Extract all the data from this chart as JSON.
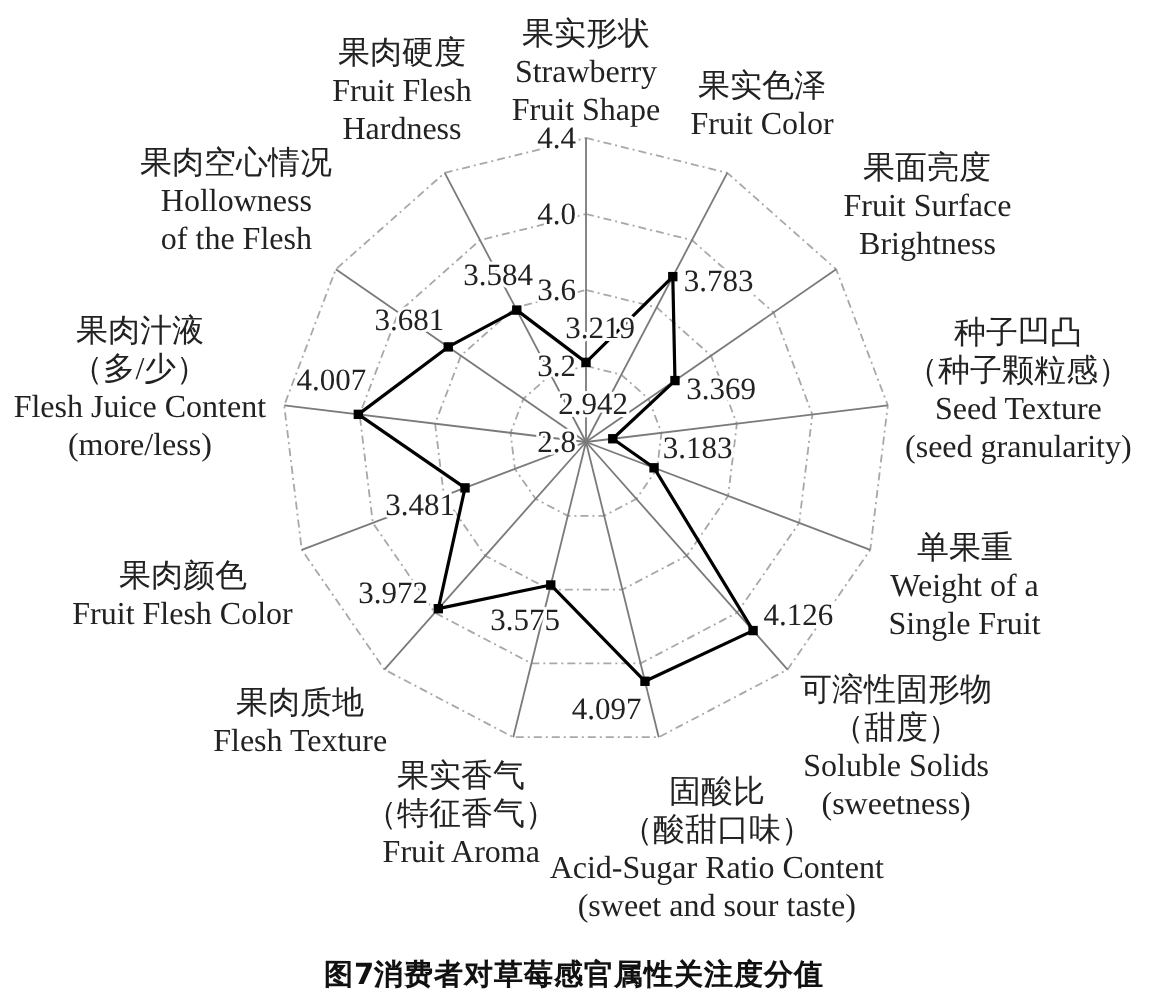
{
  "chart_data": {
    "type": "radar",
    "title": "图7消费者对草莓感官属性关注度分值",
    "categories": [
      "果实形状\nStrawberry\nFruit Shape",
      "果实色泽\nFruit Color",
      "果面亮度\nFruit Surface\nBrightness",
      "种子凹凸（种子颗粒感）\nSeed Texture\n(seed granularity)",
      "单果重\nWeight of a\nSingle Fruit",
      "可溶性固形物（甜度）\nSoluble Solids\n(sweetness)",
      "固酸比（酸甜口味）\nAcid-Sugar Ratio Content\n(sweet and sour taste)",
      "果实香气（特征香气）\nFruit Aroma",
      "果肉质地\nFlesh Texture",
      "果肉颜色\nFruit Flesh Color",
      "果肉汁液（多/少）\nFlesh Juice Content\n(more/less)",
      "果肉空心情况\nHollowness\nof the Flesh",
      "果肉硬度\nFruit Flesh\nHardness"
    ],
    "series": [
      {
        "color": "#000000",
        "values": [
          3.219,
          3.783,
          3.369,
          2.942,
          3.183,
          4.126,
          4.097,
          3.575,
          3.972,
          3.481,
          4.007,
          3.681,
          3.584
        ]
      }
    ],
    "ylim": [
      2.8,
      4.4
    ],
    "yticks": [
      2.8,
      3.2,
      3.6,
      {
        "value": 4.0,
        "label": "4.0"
      },
      4.4
    ],
    "grid": true,
    "marker": "square",
    "data_labels": true
  }
}
